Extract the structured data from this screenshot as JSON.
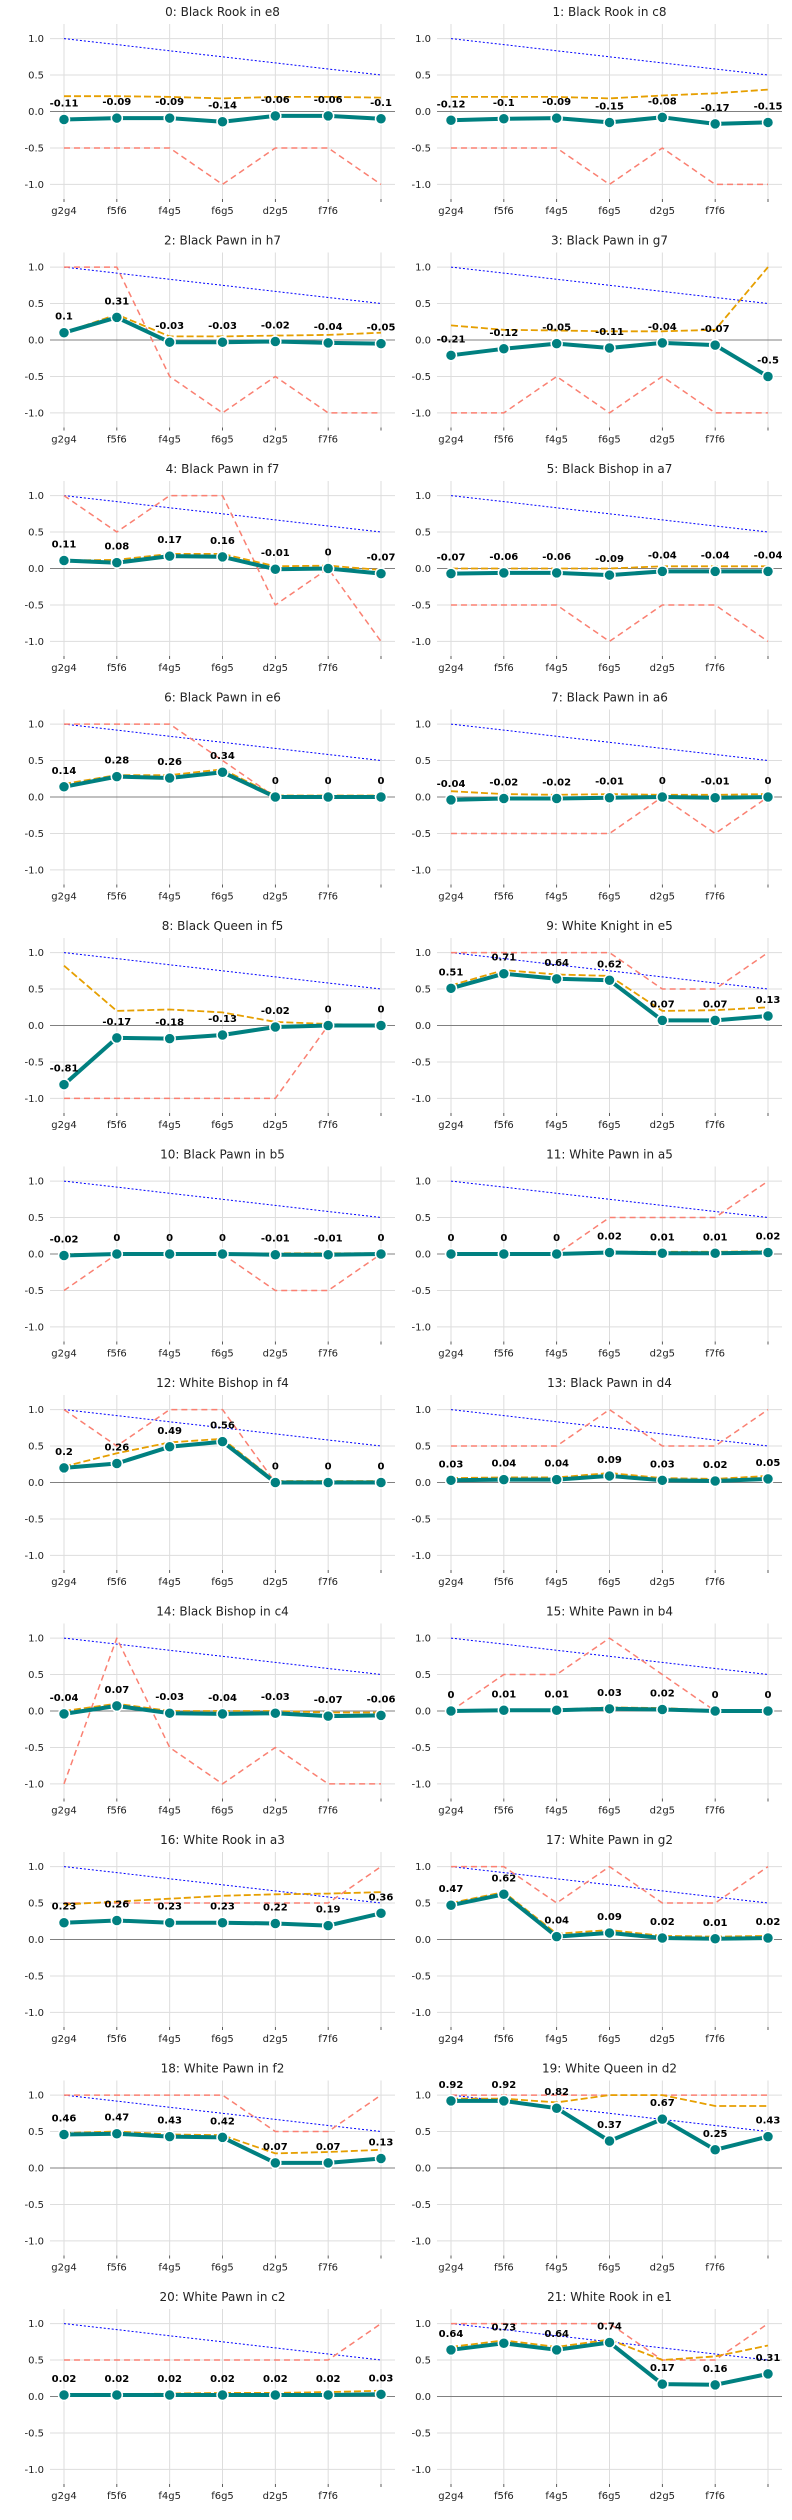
{
  "x_labels": [
    "g2g4",
    "f5f6",
    "f4g5",
    "f6g5",
    "d2g5",
    "f7f6",
    ""
  ],
  "y_ticks": [
    "1.0",
    "0.5",
    "0.0",
    "-0.5",
    "-1.0"
  ],
  "colors": {
    "main": "#008080",
    "orange": "#e69f00",
    "red": "#fa8072",
    "blue": "#0000ff",
    "zero": "#808080",
    "grid": "#dddddd",
    "plot_bg": "#ffffff"
  },
  "chart_data": [
    {
      "type": "line",
      "title": "0: Black Rook in e8",
      "ylim": [
        -1.2,
        1.2
      ],
      "main": [
        -0.11,
        -0.09,
        -0.09,
        -0.14,
        -0.06,
        -0.06,
        -0.1
      ],
      "orange": [
        0.21,
        0.21,
        0.2,
        0.18,
        0.2,
        0.2,
        0.19
      ],
      "red": [
        -0.5,
        -0.5,
        -0.5,
        -1.0,
        -0.5,
        -0.5,
        -1.0
      ],
      "blue": [
        1.0,
        0.917,
        0.833,
        0.75,
        0.667,
        0.583,
        0.5
      ]
    },
    {
      "type": "line",
      "title": "1: Black Rook in c8",
      "ylim": [
        -1.2,
        1.2
      ],
      "main": [
        -0.12,
        -0.1,
        -0.09,
        -0.15,
        -0.08,
        -0.17,
        -0.15
      ],
      "orange": [
        0.2,
        0.2,
        0.2,
        0.18,
        0.22,
        0.25,
        0.3
      ],
      "red": [
        -0.5,
        -0.5,
        -0.5,
        -1.0,
        -0.5,
        -1.0,
        -1.0
      ],
      "blue": [
        1.0,
        0.917,
        0.833,
        0.75,
        0.667,
        0.583,
        0.5
      ]
    },
    {
      "type": "line",
      "title": "2: Black Pawn in h7",
      "ylim": [
        -1.2,
        1.2
      ],
      "main": [
        0.1,
        0.31,
        -0.03,
        -0.03,
        -0.02,
        -0.04,
        -0.05
      ],
      "orange": [
        0.1,
        0.35,
        0.05,
        0.05,
        0.06,
        0.07,
        0.1
      ],
      "red": [
        1.0,
        1.0,
        -0.5,
        -1.0,
        -0.5,
        -1.0,
        -1.0
      ],
      "blue": [
        1.0,
        0.917,
        0.833,
        0.75,
        0.667,
        0.583,
        0.5
      ]
    },
    {
      "type": "line",
      "title": "3: Black Pawn in g7",
      "ylim": [
        -1.2,
        1.2
      ],
      "main": [
        -0.21,
        -0.12,
        -0.05,
        -0.11,
        -0.04,
        -0.07,
        -0.5
      ],
      "orange": [
        0.2,
        0.14,
        0.13,
        0.12,
        0.12,
        0.14,
        1.0
      ],
      "red": [
        -1.0,
        -1.0,
        -0.5,
        -1.0,
        -0.5,
        -1.0,
        -1.0
      ],
      "blue": [
        1.0,
        0.917,
        0.833,
        0.75,
        0.667,
        0.583,
        0.5
      ]
    },
    {
      "type": "line",
      "title": "4: Black Pawn in f7",
      "ylim": [
        -1.2,
        1.2
      ],
      "main": [
        0.11,
        0.08,
        0.17,
        0.16,
        -0.01,
        0.0,
        -0.07
      ],
      "orange": [
        0.11,
        0.12,
        0.2,
        0.2,
        0.03,
        0.04,
        -0.02
      ],
      "red": [
        1.0,
        0.5,
        1.0,
        1.0,
        -0.5,
        0.0,
        -1.0
      ],
      "blue": [
        1.0,
        0.917,
        0.833,
        0.75,
        0.667,
        0.583,
        0.5
      ]
    },
    {
      "type": "line",
      "title": "5: Black Bishop in a7",
      "ylim": [
        -1.2,
        1.2
      ],
      "main": [
        -0.07,
        -0.06,
        -0.06,
        -0.09,
        -0.04,
        -0.04,
        -0.04
      ],
      "orange": [
        0.0,
        0.0,
        0.0,
        0.0,
        0.03,
        0.03,
        0.03
      ],
      "red": [
        -0.5,
        -0.5,
        -0.5,
        -1.0,
        -0.5,
        -0.5,
        -1.0
      ],
      "blue": [
        1.0,
        0.917,
        0.833,
        0.75,
        0.667,
        0.583,
        0.5
      ]
    },
    {
      "type": "line",
      "title": "6: Black Pawn in e6",
      "ylim": [
        -1.2,
        1.2
      ],
      "main": [
        0.14,
        0.28,
        0.26,
        0.34,
        0.0,
        0.0,
        0.0
      ],
      "orange": [
        0.18,
        0.3,
        0.3,
        0.38,
        0.02,
        0.02,
        0.02
      ],
      "red": [
        1.0,
        1.0,
        1.0,
        0.5,
        0.0,
        0.0,
        0.0
      ],
      "blue": [
        1.0,
        0.917,
        0.833,
        0.75,
        0.667,
        0.583,
        0.5
      ]
    },
    {
      "type": "line",
      "title": "7: Black Pawn in a6",
      "ylim": [
        -1.2,
        1.2
      ],
      "main": [
        -0.04,
        -0.02,
        -0.02,
        -0.01,
        0.0,
        -0.01,
        0.0
      ],
      "orange": [
        0.08,
        0.04,
        0.03,
        0.04,
        0.03,
        0.03,
        0.04
      ],
      "red": [
        -0.5,
        -0.5,
        -0.5,
        -0.5,
        0.0,
        -0.5,
        0.0
      ],
      "blue": [
        1.0,
        0.917,
        0.833,
        0.75,
        0.667,
        0.583,
        0.5
      ]
    },
    {
      "type": "line",
      "title": "8: Black Queen in f5",
      "ylim": [
        -1.2,
        1.2
      ],
      "main": [
        -0.81,
        -0.17,
        -0.18,
        -0.13,
        -0.02,
        0.0,
        0.0
      ],
      "orange": [
        0.82,
        0.2,
        0.22,
        0.18,
        0.05,
        0.02,
        0.0
      ],
      "red": [
        -1.0,
        -1.0,
        -1.0,
        -1.0,
        -1.0,
        0.0,
        0.0
      ],
      "blue": [
        1.0,
        0.917,
        0.833,
        0.75,
        0.667,
        0.583,
        0.5
      ]
    },
    {
      "type": "line",
      "title": "9: White Knight in e5",
      "ylim": [
        -1.2,
        1.2
      ],
      "main": [
        0.51,
        0.71,
        0.64,
        0.62,
        0.07,
        0.07,
        0.13
      ],
      "orange": [
        0.55,
        0.76,
        0.7,
        0.68,
        0.2,
        0.21,
        0.25
      ],
      "red": [
        1.0,
        1.0,
        1.0,
        1.0,
        0.5,
        0.5,
        1.0
      ],
      "blue": [
        1.0,
        0.917,
        0.833,
        0.75,
        0.667,
        0.583,
        0.5
      ]
    },
    {
      "type": "line",
      "title": "10: Black Pawn in b5",
      "ylim": [
        -1.2,
        1.2
      ],
      "main": [
        -0.02,
        0.0,
        0.0,
        0.0,
        -0.01,
        -0.01,
        0.0
      ],
      "orange": [
        0.0,
        0.0,
        0.0,
        0.0,
        0.01,
        0.01,
        0.01
      ],
      "red": [
        -0.5,
        0.0,
        0.0,
        0.0,
        -0.5,
        -0.5,
        0.0
      ],
      "blue": [
        1.0,
        0.917,
        0.833,
        0.75,
        0.667,
        0.583,
        0.5
      ]
    },
    {
      "type": "line",
      "title": "11: White Pawn in a5",
      "ylim": [
        -1.2,
        1.2
      ],
      "main": [
        0.0,
        0.0,
        0.0,
        0.02,
        0.01,
        0.01,
        0.02
      ],
      "orange": [
        0.0,
        0.0,
        0.0,
        0.03,
        0.03,
        0.03,
        0.04
      ],
      "red": [
        0.0,
        0.0,
        0.0,
        0.5,
        0.5,
        0.5,
        1.0
      ],
      "blue": [
        1.0,
        0.917,
        0.833,
        0.75,
        0.667,
        0.583,
        0.5
      ]
    },
    {
      "type": "line",
      "title": "12: White Bishop in f4",
      "ylim": [
        -1.2,
        1.2
      ],
      "main": [
        0.2,
        0.26,
        0.49,
        0.56,
        0.0,
        0.0,
        0.0
      ],
      "orange": [
        0.22,
        0.4,
        0.55,
        0.6,
        0.02,
        0.02,
        0.02
      ],
      "red": [
        1.0,
        0.5,
        1.0,
        1.0,
        0.0,
        0.0,
        0.0
      ],
      "blue": [
        1.0,
        0.917,
        0.833,
        0.75,
        0.667,
        0.583,
        0.5
      ]
    },
    {
      "type": "line",
      "title": "13: Black Pawn in d4",
      "ylim": [
        -1.2,
        1.2
      ],
      "main": [
        0.03,
        0.04,
        0.04,
        0.09,
        0.03,
        0.02,
        0.05
      ],
      "orange": [
        0.06,
        0.07,
        0.07,
        0.13,
        0.06,
        0.05,
        0.09
      ],
      "red": [
        0.5,
        0.5,
        0.5,
        1.0,
        0.5,
        0.5,
        1.0
      ],
      "blue": [
        1.0,
        0.917,
        0.833,
        0.75,
        0.667,
        0.583,
        0.5
      ]
    },
    {
      "type": "line",
      "title": "14: Black Bishop in c4",
      "ylim": [
        -1.2,
        1.2
      ],
      "main": [
        -0.04,
        0.07,
        -0.03,
        -0.04,
        -0.03,
        -0.07,
        -0.06
      ],
      "orange": [
        0.0,
        0.1,
        0.0,
        0.0,
        0.0,
        -0.02,
        -0.02
      ],
      "red": [
        -1.0,
        1.0,
        -0.5,
        -1.0,
        -0.5,
        -1.0,
        -1.0
      ],
      "blue": [
        1.0,
        0.917,
        0.833,
        0.75,
        0.667,
        0.583,
        0.5
      ]
    },
    {
      "type": "line",
      "title": "15: White Pawn in b4",
      "ylim": [
        -1.2,
        1.2
      ],
      "main": [
        0.0,
        0.01,
        0.01,
        0.03,
        0.02,
        0.0,
        0.0
      ],
      "orange": [
        0.0,
        0.02,
        0.02,
        0.05,
        0.04,
        0.01,
        0.01
      ],
      "red": [
        0.0,
        0.5,
        0.5,
        1.0,
        0.5,
        0.0,
        0.0
      ],
      "blue": [
        1.0,
        0.917,
        0.833,
        0.75,
        0.667,
        0.583,
        0.5
      ]
    },
    {
      "type": "line",
      "title": "16: White Rook in a3",
      "ylim": [
        -1.2,
        1.2
      ],
      "main": [
        0.23,
        0.26,
        0.23,
        0.23,
        0.22,
        0.19,
        0.36
      ],
      "orange": [
        0.48,
        0.52,
        0.56,
        0.6,
        0.62,
        0.63,
        0.65
      ],
      "red": [
        0.5,
        0.5,
        0.5,
        0.5,
        0.5,
        0.5,
        1.0
      ],
      "blue": [
        1.0,
        0.917,
        0.833,
        0.75,
        0.667,
        0.583,
        0.5
      ]
    },
    {
      "type": "line",
      "title": "17: White Pawn in g2",
      "ylim": [
        -1.2,
        1.2
      ],
      "main": [
        0.47,
        0.62,
        0.04,
        0.09,
        0.02,
        0.01,
        0.02
      ],
      "orange": [
        0.5,
        0.65,
        0.08,
        0.13,
        0.05,
        0.04,
        0.05
      ],
      "red": [
        1.0,
        1.0,
        0.5,
        1.0,
        0.5,
        0.5,
        1.0
      ],
      "blue": [
        1.0,
        0.917,
        0.833,
        0.75,
        0.667,
        0.583,
        0.5
      ]
    },
    {
      "type": "line",
      "title": "18: White Pawn in f2",
      "ylim": [
        -1.2,
        1.2
      ],
      "main": [
        0.46,
        0.47,
        0.43,
        0.42,
        0.07,
        0.07,
        0.13
      ],
      "orange": [
        0.48,
        0.5,
        0.46,
        0.45,
        0.2,
        0.22,
        0.25
      ],
      "red": [
        1.0,
        1.0,
        1.0,
        1.0,
        0.5,
        0.5,
        1.0
      ],
      "blue": [
        1.0,
        0.917,
        0.833,
        0.75,
        0.667,
        0.583,
        0.5
      ]
    },
    {
      "type": "line",
      "title": "19: White Queen in d2",
      "ylim": [
        -1.2,
        1.2
      ],
      "main": [
        0.92,
        0.92,
        0.82,
        0.37,
        0.67,
        0.25,
        0.43
      ],
      "orange": [
        0.95,
        0.95,
        0.9,
        1.0,
        1.0,
        0.85,
        0.85
      ],
      "red": [
        1.0,
        1.0,
        1.0,
        1.0,
        1.0,
        1.0,
        1.0
      ],
      "blue": [
        1.0,
        0.917,
        0.833,
        0.75,
        0.667,
        0.583,
        0.5
      ]
    },
    {
      "type": "line",
      "title": "20: White Pawn in c2",
      "ylim": [
        -1.2,
        1.2
      ],
      "main": [
        0.02,
        0.02,
        0.02,
        0.02,
        0.02,
        0.02,
        0.03
      ],
      "orange": [
        0.03,
        0.03,
        0.04,
        0.05,
        0.05,
        0.06,
        0.08
      ],
      "red": [
        0.5,
        0.5,
        0.5,
        0.5,
        0.5,
        0.5,
        1.0
      ],
      "blue": [
        1.0,
        0.917,
        0.833,
        0.75,
        0.667,
        0.583,
        0.5
      ]
    },
    {
      "type": "line",
      "title": "21: White Rook in e1",
      "ylim": [
        -1.2,
        1.2
      ],
      "main": [
        0.64,
        0.73,
        0.64,
        0.74,
        0.17,
        0.16,
        0.31
      ],
      "orange": [
        0.68,
        0.77,
        0.68,
        0.78,
        0.5,
        0.55,
        0.7
      ],
      "red": [
        1.0,
        1.0,
        1.0,
        1.0,
        0.5,
        0.5,
        1.0
      ],
      "blue": [
        1.0,
        0.917,
        0.833,
        0.75,
        0.667,
        0.583,
        0.5
      ]
    }
  ]
}
